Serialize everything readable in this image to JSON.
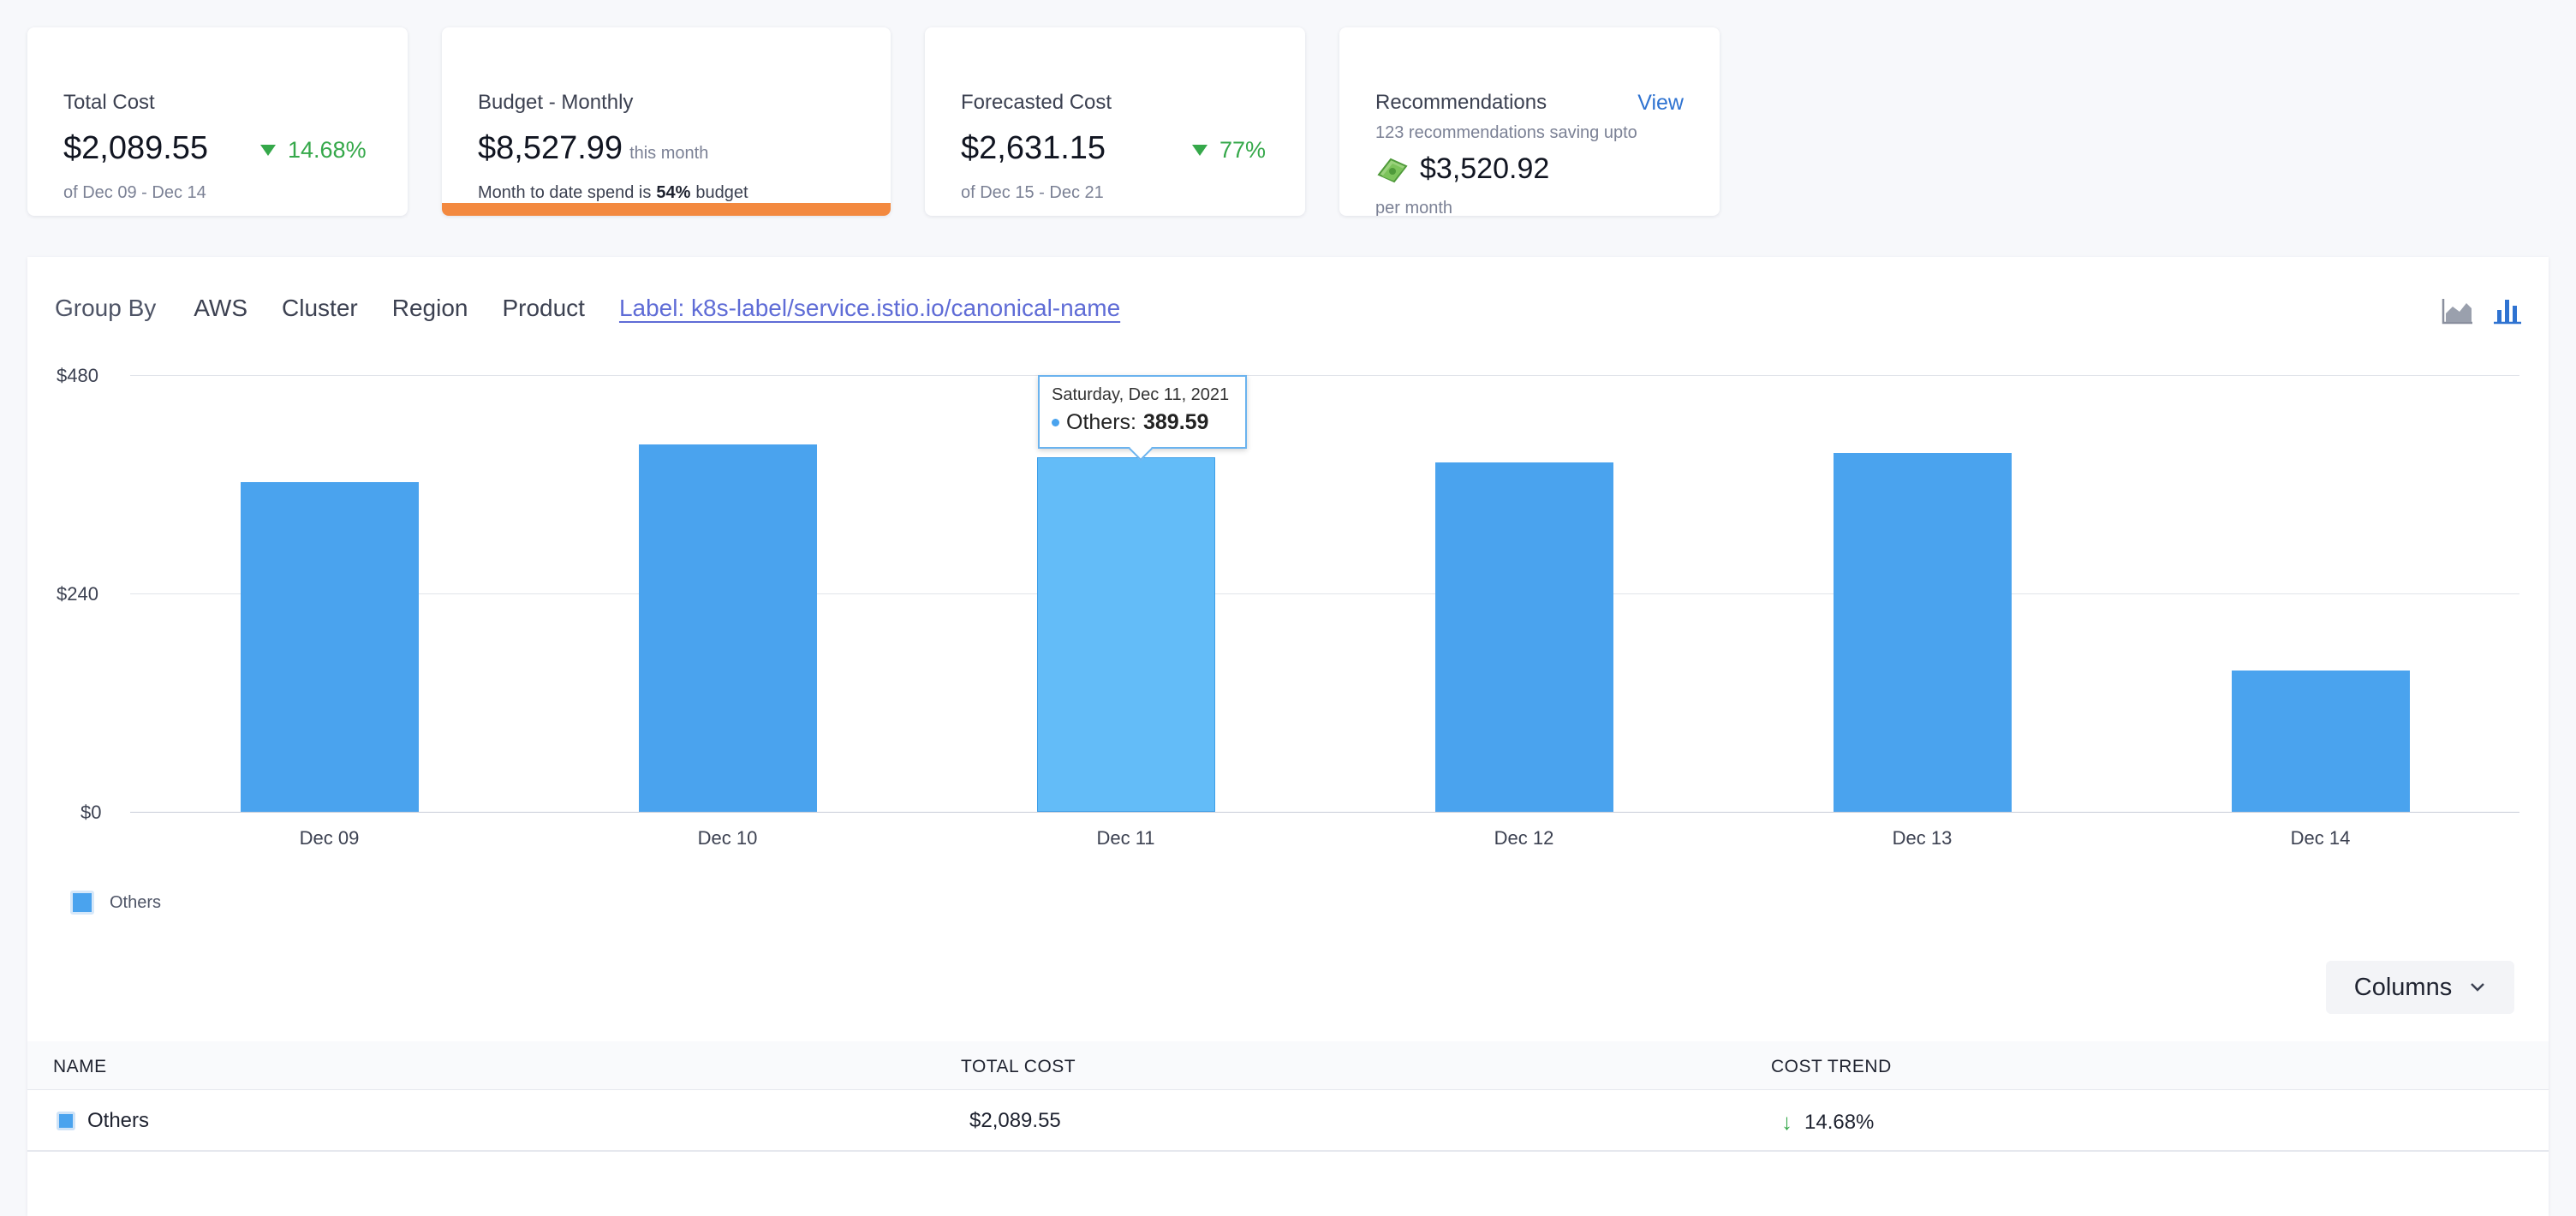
{
  "kpis": {
    "total_cost": {
      "title": "Total Cost",
      "value": "$2,089.55",
      "trend": "14.68%",
      "range": "of Dec 09 - Dec 14"
    },
    "budget": {
      "title": "Budget - Monthly",
      "value": "$8,527.99",
      "period": "this month",
      "line_prefix": "Month to date spend is",
      "percent": "54%",
      "line_suffix": "budget",
      "bar_fill": 0.54,
      "bar_color": "#f3893f"
    },
    "forecast": {
      "title": "Forecasted Cost",
      "value": "$2,631.15",
      "trend": "77%",
      "range": "of Dec 15 - Dec 21"
    },
    "recommendations": {
      "title": "Recommendations",
      "view_label": "View",
      "line": "123 recommendations saving upto",
      "value": "$3,520.92",
      "sub": "per month"
    }
  },
  "group_by": {
    "label": "Group By",
    "options": [
      "AWS",
      "Cluster",
      "Region",
      "Product"
    ],
    "active": "Label: k8s-label/service.istio.io/canonical-name"
  },
  "chart_toggles": [
    "area-chart-icon",
    "bar-chart-icon"
  ],
  "chart_data": {
    "type": "bar",
    "categories": [
      "Dec 09",
      "Dec 10",
      "Dec 11",
      "Dec 12",
      "Dec 13",
      "Dec 14"
    ],
    "series": [
      {
        "name": "Others",
        "values": [
          362,
          404,
          389.59,
          384,
          394,
          155
        ],
        "color": "#4aa3ee"
      }
    ],
    "y_ticks": [
      "$0",
      "$240",
      "$480"
    ],
    "ylim": [
      0,
      480
    ],
    "highlight_index": 2,
    "tooltip": {
      "date": "Saturday, Dec 11, 2021",
      "series": "Others:",
      "value": "389.59"
    },
    "legend": "Others"
  },
  "columns_button": "Columns",
  "table": {
    "headers": [
      "NAME",
      "TOTAL COST",
      "COST TREND"
    ],
    "rows": [
      {
        "name": "Others",
        "total_cost": "$2,089.55",
        "trend": "14.68%"
      }
    ]
  }
}
